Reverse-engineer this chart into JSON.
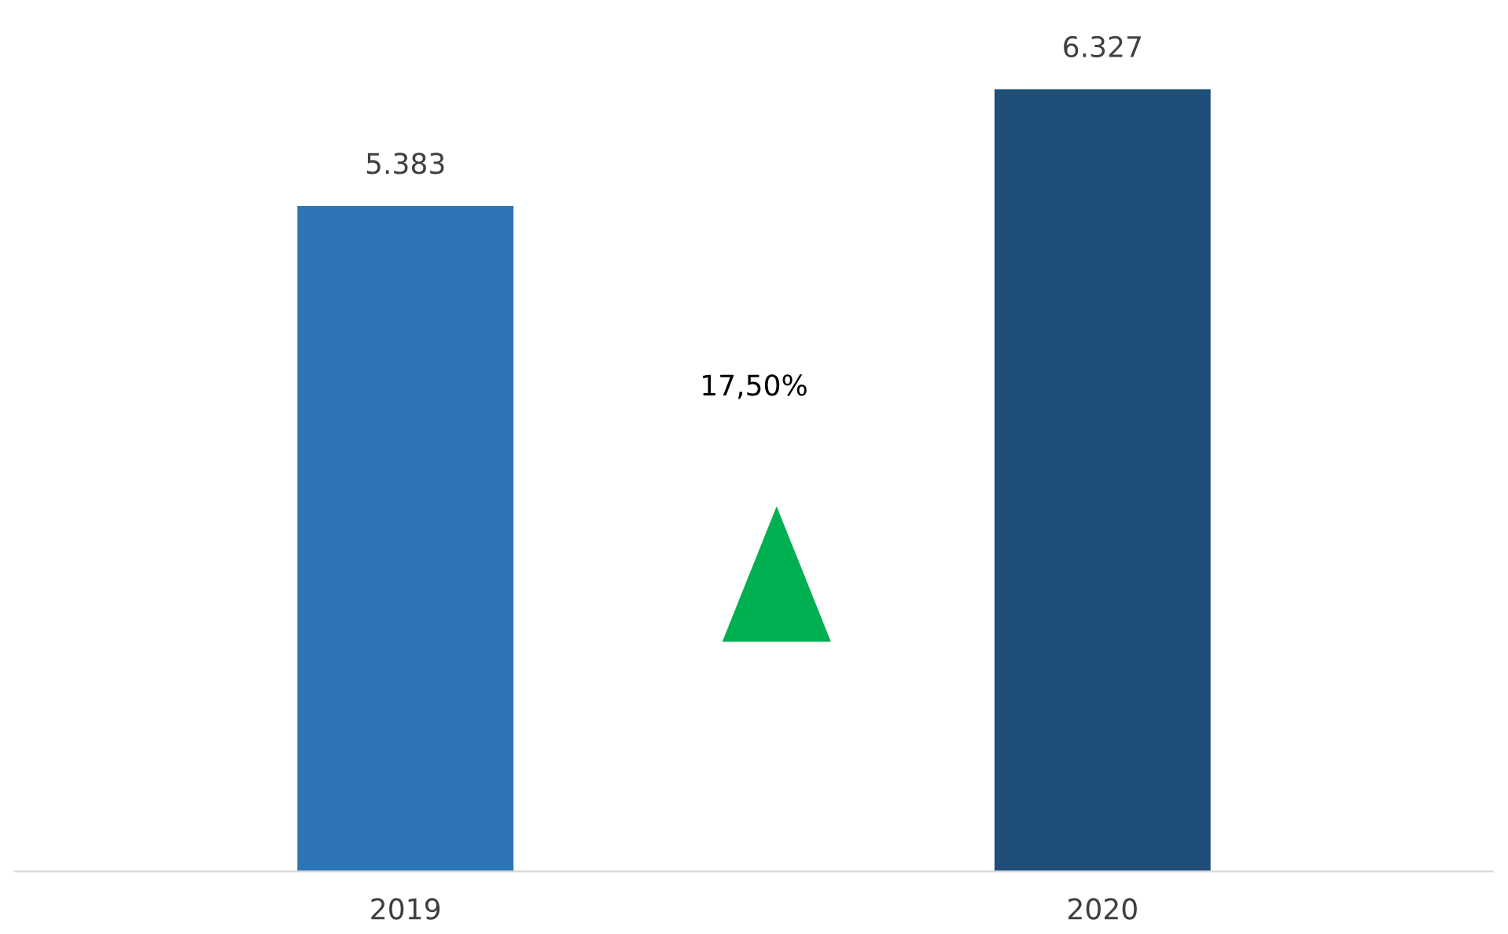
{
  "chart_data": {
    "type": "bar",
    "categories": [
      "2019",
      "2020"
    ],
    "values": [
      5.383,
      6.327
    ],
    "value_labels": [
      "5.383",
      "6.327"
    ],
    "colors": [
      "#2e75b6",
      "#1f4e79"
    ],
    "annotations": [
      "17,50%"
    ],
    "grid": false,
    "legend": false
  }
}
